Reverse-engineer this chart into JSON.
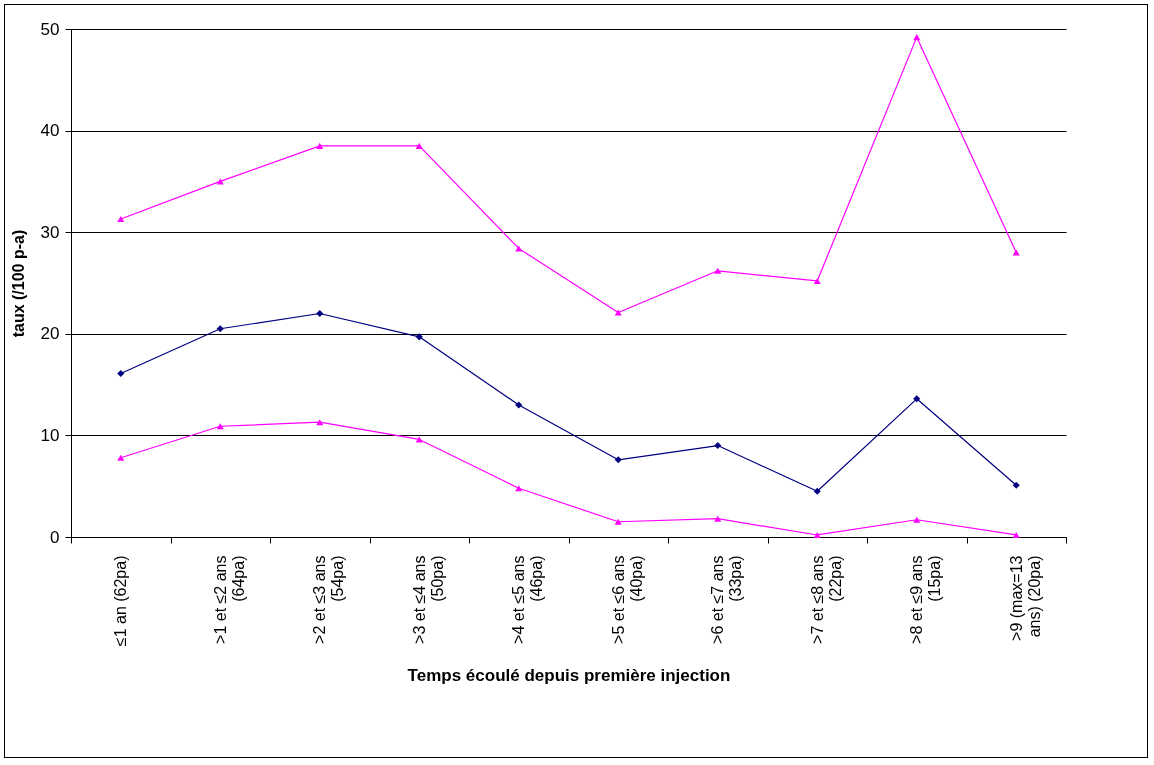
{
  "chart_data": {
    "type": "line",
    "xlabel": "Temps écoulé depuis première injection",
    "ylabel": "taux (/100 p-a)",
    "categories": [
      "≤1 an (62pa)",
      ">1 et ≤2 ans (64pa)",
      ">2 et ≤3 ans (54pa)",
      ">3 et ≤4 ans (50pa)",
      ">4 et ≤5 ans (46pa)",
      ">5 et ≤6 ans (40pa)",
      ">6 et ≤7 ans (33pa)",
      ">7 et ≤8 ans (22pa)",
      ">8 et ≤9 ans (15pa)",
      ">9 (max=13 ans) (20pa)"
    ],
    "series": [
      {
        "color": "#ff00ff",
        "marker": "triangle",
        "values": [
          31.3,
          35.0,
          38.5,
          38.5,
          28.4,
          22.1,
          26.2,
          25.2,
          49.2,
          28.0
        ]
      },
      {
        "color": "#000080",
        "marker": "diamond",
        "values": [
          16.1,
          20.5,
          22.0,
          19.7,
          13.0,
          7.6,
          9.0,
          4.5,
          13.6,
          5.1
        ]
      },
      {
        "color": "#ff00ff",
        "marker": "triangle",
        "values": [
          7.8,
          10.9,
          11.3,
          9.6,
          4.8,
          1.5,
          1.8,
          0.2,
          1.7,
          0.2
        ]
      }
    ],
    "ylim": [
      0,
      50
    ],
    "yticks": [
      0,
      10,
      20,
      30,
      40,
      50
    ],
    "grid": "y"
  }
}
